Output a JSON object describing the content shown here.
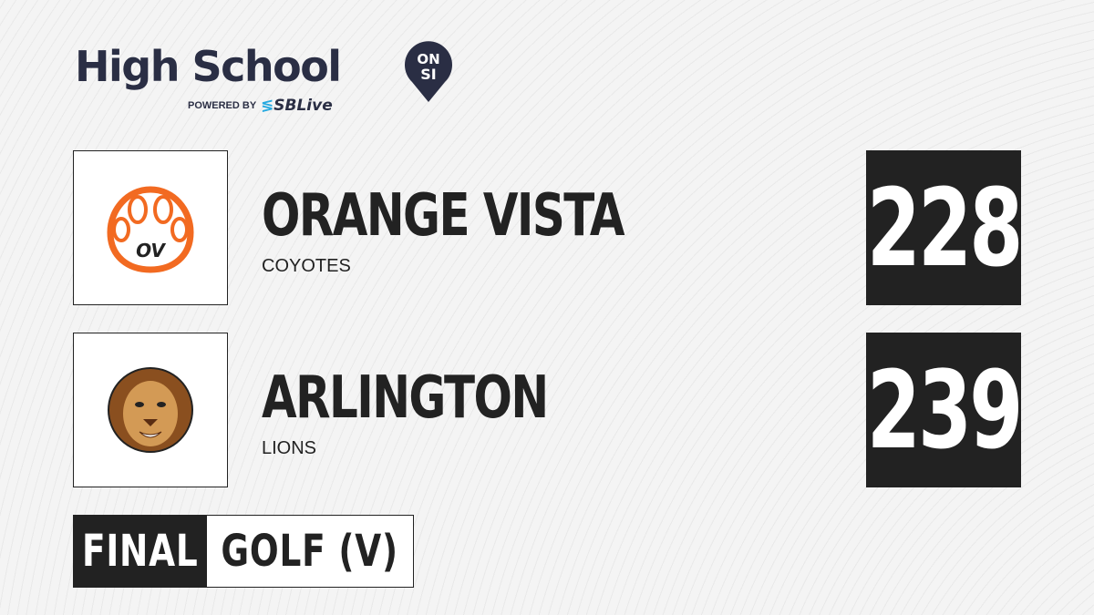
{
  "brand": {
    "title": "High School",
    "badge_top": "ON",
    "badge_bottom": "SI",
    "powered_by": "POWERED BY",
    "partner": "SBLive"
  },
  "teams": [
    {
      "name": "ORANGE VISTA",
      "mascot": "COYOTES",
      "score": "228",
      "logo": "paw-icon",
      "color": "#f26a21"
    },
    {
      "name": "ARLINGTON",
      "mascot": "LIONS",
      "score": "239",
      "logo": "lion-icon",
      "color": "#b9773a"
    }
  ],
  "status": {
    "state": "FINAL",
    "sport": "GOLF (V)"
  }
}
